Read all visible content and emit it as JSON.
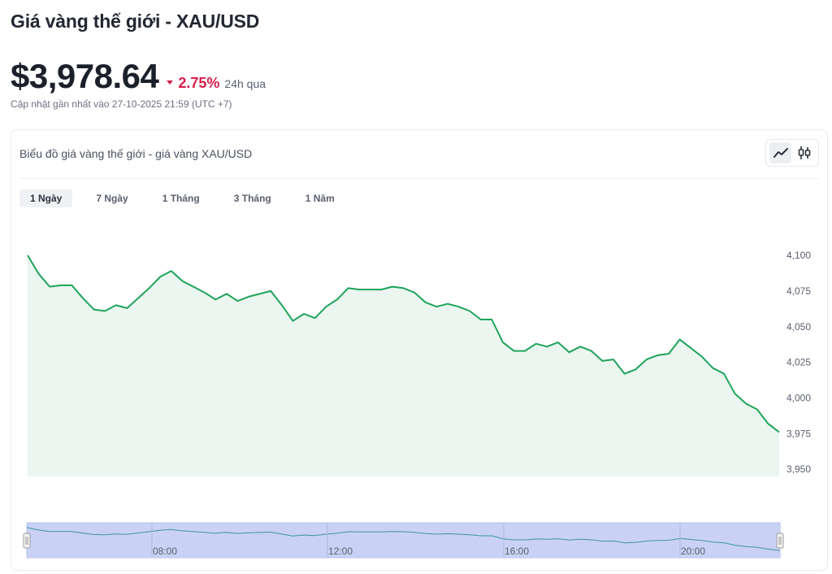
{
  "header": {
    "title": "Giá vàng thế giới - XAU/USD",
    "price": "$3,978.64",
    "change": "2.75%",
    "period": "24h qua",
    "updated": "Cập nhật gần nhất vào 27-10-2025 21:59 (UTC +7)"
  },
  "card": {
    "title": "Biểu đồ giá vàng thế giới - giá vàng XAU/USD",
    "toggles": [
      {
        "name": "line-chart-icon",
        "active": true
      },
      {
        "name": "candlestick-icon",
        "active": false
      }
    ],
    "tabs": [
      {
        "label": "1 Ngày",
        "active": true
      },
      {
        "label": "7 Ngày",
        "active": false
      },
      {
        "label": "1 Tháng",
        "active": false
      },
      {
        "label": "3 Tháng",
        "active": false
      },
      {
        "label": "1 Năm",
        "active": false
      }
    ]
  },
  "colors": {
    "line": "#1fa35c",
    "area": "#eaf6ef",
    "negative": "#d81e4a",
    "navigator_fill": "#c9d1f5",
    "navigator_line": "#3b96a6"
  },
  "chart_data": {
    "type": "area",
    "ylim": [
      3945,
      4108
    ],
    "yticks": [
      4100,
      4075,
      4050,
      4025,
      4000,
      3975,
      3950
    ],
    "ytick_labels": [
      "4,100",
      "4,075",
      "4,050",
      "4,025",
      "4,000",
      "3,975",
      "3,950"
    ],
    "navigator_xticks": [
      "08:00",
      "12:00",
      "16:00",
      "20:00"
    ],
    "y": [
      4100,
      4087,
      4078,
      4079,
      4079,
      4070,
      4062,
      4061,
      4065,
      4063,
      4070,
      4077,
      4085,
      4089,
      4082,
      4078,
      4074,
      4069,
      4073,
      4068,
      4071,
      4073,
      4075,
      4065,
      4054,
      4059,
      4056,
      4064,
      4069,
      4077,
      4076,
      4076,
      4076,
      4078,
      4077,
      4074,
      4067,
      4064,
      4066,
      4064,
      4061,
      4055,
      4055,
      4039,
      4033,
      4033,
      4038,
      4036,
      4039,
      4032,
      4036,
      4033,
      4026,
      4027,
      4017,
      4020,
      4027,
      4030,
      4031,
      4041,
      4035,
      4029,
      4021,
      4017,
      4003,
      3996,
      3992,
      3982,
      3976
    ]
  }
}
